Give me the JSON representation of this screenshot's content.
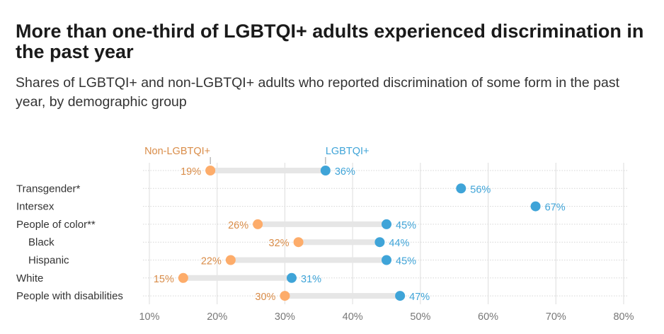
{
  "header": {
    "title": "More than one-third of LGBTQI+ adults experienced discrimination in the past year",
    "subtitle": "Shares of LGBTQI+ and non-LGBTQI+ adults who reported discrimination of some form in the past year, by demographic group"
  },
  "chart_data": {
    "type": "dumbbell",
    "title": "More than one-third of LGBTQI+ adults experienced discrimination in the past year",
    "subtitle": "Shares of LGBTQI+ and non-LGBTQI+ adults who reported discrimination of some form in the past year, by demographic group",
    "xlabel": "",
    "ylabel": "",
    "xlim": [
      10,
      80
    ],
    "x_ticks": [
      10,
      20,
      30,
      40,
      50,
      60,
      70,
      80
    ],
    "x_tick_labels": [
      "10%",
      "20%",
      "30%",
      "40%",
      "50%",
      "60%",
      "70%",
      "80%"
    ],
    "grid": true,
    "legend": "inline-top",
    "categories": [
      "",
      "Transgender*",
      "Intersex",
      "People of color**",
      "Black",
      "Hispanic",
      "White",
      "People with disabilities"
    ],
    "indented": [
      false,
      false,
      false,
      false,
      true,
      true,
      false,
      false
    ],
    "series": [
      {
        "name": "Non-LGBTQI+",
        "color": "#fdac6a",
        "label_color": "#d98c48",
        "values": [
          19,
          null,
          null,
          26,
          32,
          22,
          15,
          30
        ]
      },
      {
        "name": "LGBTQI+",
        "color": "#3fa4d8",
        "label_color": "#3fa4d8",
        "values": [
          36,
          56,
          67,
          45,
          44,
          45,
          31,
          47
        ]
      }
    ],
    "connector_color": "#e6e6e6"
  }
}
